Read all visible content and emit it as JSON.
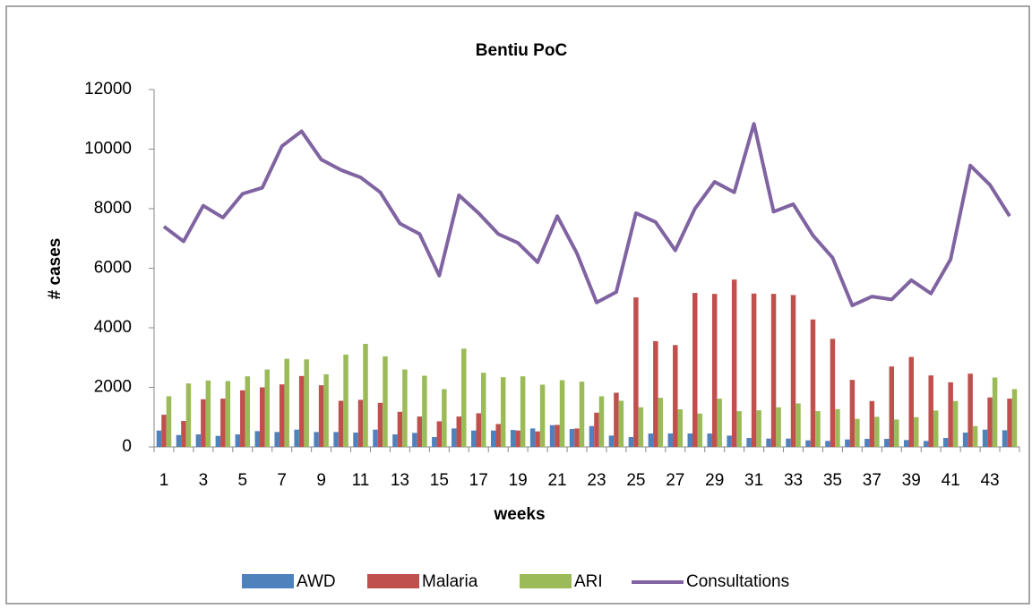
{
  "chart_data": {
    "type": "bar_line",
    "title": "Bentiu PoC",
    "x_label": "weeks",
    "y_label": "# cases",
    "categories": [
      "1",
      null,
      "3",
      null,
      "5",
      null,
      "7",
      null,
      "9",
      null,
      "11",
      null,
      "13",
      null,
      "15",
      null,
      "17",
      null,
      "19",
      null,
      "21",
      null,
      "23",
      null,
      "25",
      null,
      "27",
      null,
      "29",
      null,
      "31",
      null,
      "33",
      null,
      "35",
      null,
      "37",
      null,
      "39",
      null,
      "41",
      null,
      "43",
      null
    ],
    "ylim": [
      0,
      12000
    ],
    "yticks": [
      0,
      2000,
      4000,
      6000,
      8000,
      10000,
      12000
    ],
    "grid": false,
    "legend": "bottom",
    "series": [
      {
        "name": "AWD",
        "type": "bar",
        "color": "#4f81bd",
        "values": [
          550,
          400,
          420,
          370,
          420,
          530,
          500,
          580,
          500,
          500,
          480,
          580,
          420,
          470,
          330,
          620,
          550,
          550,
          570,
          620,
          730,
          600,
          700,
          380,
          330,
          450,
          450,
          450,
          450,
          380,
          300,
          280,
          280,
          220,
          200,
          250,
          270,
          270,
          230,
          200,
          300,
          480,
          580,
          560
        ]
      },
      {
        "name": "Malaria",
        "type": "bar",
        "color": "#c0504d",
        "values": [
          1080,
          870,
          1600,
          1620,
          1900,
          2000,
          2100,
          2380,
          2070,
          1550,
          1580,
          1480,
          1180,
          1020,
          860,
          1020,
          1130,
          770,
          550,
          520,
          740,
          620,
          1150,
          1820,
          5020,
          3550,
          3420,
          5170,
          5140,
          5620,
          5150,
          5140,
          5100,
          4280,
          3630,
          2250,
          1540,
          2700,
          3020,
          2400,
          2170,
          2460,
          1660,
          1620
        ]
      },
      {
        "name": "ARI",
        "type": "bar",
        "color": "#9bbb59",
        "values": [
          1700,
          2130,
          2230,
          2210,
          2370,
          2600,
          2960,
          2940,
          2440,
          3100,
          3460,
          3040,
          2600,
          2390,
          1940,
          3300,
          2490,
          2340,
          2370,
          2090,
          2240,
          2190,
          1700,
          1550,
          1330,
          1650,
          1260,
          1120,
          1620,
          1200,
          1230,
          1330,
          1460,
          1200,
          1270,
          940,
          1010,
          920,
          1000,
          1220,
          1540,
          700,
          2330,
          1940
        ]
      },
      {
        "name": "Consultations",
        "type": "line",
        "color": "#8064a2",
        "values": [
          7400,
          6900,
          8100,
          7700,
          8500,
          8700,
          10100,
          10600,
          9650,
          9300,
          9050,
          8550,
          7500,
          7150,
          5750,
          8450,
          7850,
          7150,
          6850,
          6200,
          7750,
          6500,
          4850,
          5200,
          7850,
          7550,
          6600,
          8000,
          8900,
          8550,
          10850,
          7900,
          8150,
          7100,
          6350,
          4750,
          5050,
          4950,
          5600,
          5150,
          6300,
          9450,
          8800,
          7750
        ]
      }
    ]
  }
}
